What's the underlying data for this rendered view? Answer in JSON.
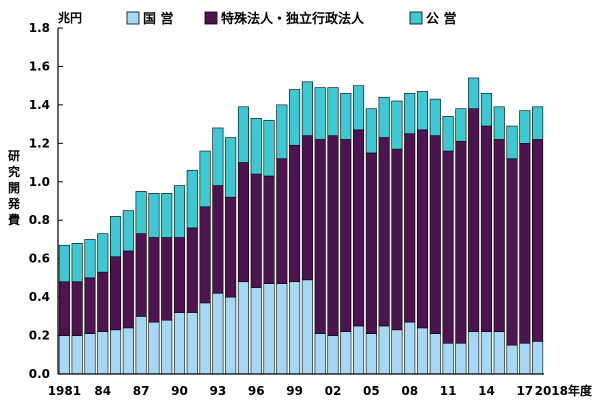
{
  "chart_data": {
    "type": "bar",
    "stacked": true,
    "unit_label": "兆円",
    "ylabel": "研究開発費",
    "xlabel_suffix": "年度",
    "ylim": [
      0,
      1.8
    ],
    "ytick_step": 0.2,
    "yticks": [
      "0.0",
      "0.2",
      "0.4",
      "0.6",
      "0.8",
      "1.0",
      "1.2",
      "1.4",
      "1.6",
      "1.8"
    ],
    "years": [
      1981,
      1982,
      1983,
      1984,
      1985,
      1986,
      1987,
      1988,
      1989,
      1990,
      1991,
      1992,
      1993,
      1994,
      1995,
      1996,
      1997,
      1998,
      1999,
      2000,
      2001,
      2002,
      2003,
      2004,
      2005,
      2006,
      2007,
      2008,
      2009,
      2010,
      2011,
      2012,
      2013,
      2014,
      2015,
      2016,
      2017,
      2018
    ],
    "x_tick_labels": [
      {
        "year": 1981,
        "label": "1981"
      },
      {
        "year": 1984,
        "label": "84"
      },
      {
        "year": 1987,
        "label": "87"
      },
      {
        "year": 1990,
        "label": "90"
      },
      {
        "year": 1993,
        "label": "93"
      },
      {
        "year": 1996,
        "label": "96"
      },
      {
        "year": 1999,
        "label": "99"
      },
      {
        "year": 2002,
        "label": "02"
      },
      {
        "year": 2005,
        "label": "05"
      },
      {
        "year": 2008,
        "label": "08"
      },
      {
        "year": 2011,
        "label": "11"
      },
      {
        "year": 2014,
        "label": "14"
      },
      {
        "year": 2017,
        "label": "17"
      },
      {
        "year": 2018,
        "label": "2018"
      }
    ],
    "legend_position": "top",
    "series": [
      {
        "name": "国 営",
        "color": "#a6d8f5",
        "values": [
          0.2,
          0.2,
          0.21,
          0.22,
          0.23,
          0.24,
          0.3,
          0.27,
          0.28,
          0.32,
          0.32,
          0.37,
          0.42,
          0.4,
          0.48,
          0.45,
          0.47,
          0.47,
          0.48,
          0.49,
          0.21,
          0.2,
          0.22,
          0.25,
          0.21,
          0.25,
          0.23,
          0.27,
          0.24,
          0.21,
          0.16,
          0.16,
          0.22,
          0.22,
          0.22,
          0.15,
          0.16,
          0.17
        ]
      },
      {
        "name": "特殊法人・独立行政法人",
        "color": "#4e1452",
        "values": [
          0.28,
          0.28,
          0.29,
          0.31,
          0.38,
          0.4,
          0.43,
          0.44,
          0.43,
          0.39,
          0.44,
          0.5,
          0.56,
          0.52,
          0.62,
          0.59,
          0.56,
          0.65,
          0.71,
          0.75,
          1.01,
          1.04,
          1.0,
          1.02,
          0.94,
          0.98,
          0.94,
          0.98,
          1.03,
          1.03,
          1.0,
          1.05,
          1.16,
          1.07,
          1.0,
          0.97,
          1.04,
          1.05
        ]
      },
      {
        "name": "公 営",
        "color": "#3ec8d4",
        "values": [
          0.19,
          0.2,
          0.2,
          0.2,
          0.21,
          0.21,
          0.22,
          0.23,
          0.23,
          0.27,
          0.3,
          0.29,
          0.3,
          0.31,
          0.29,
          0.29,
          0.29,
          0.28,
          0.29,
          0.28,
          0.27,
          0.25,
          0.24,
          0.23,
          0.23,
          0.21,
          0.25,
          0.21,
          0.2,
          0.19,
          0.18,
          0.17,
          0.16,
          0.17,
          0.17,
          0.17,
          0.17,
          0.17
        ]
      }
    ]
  }
}
